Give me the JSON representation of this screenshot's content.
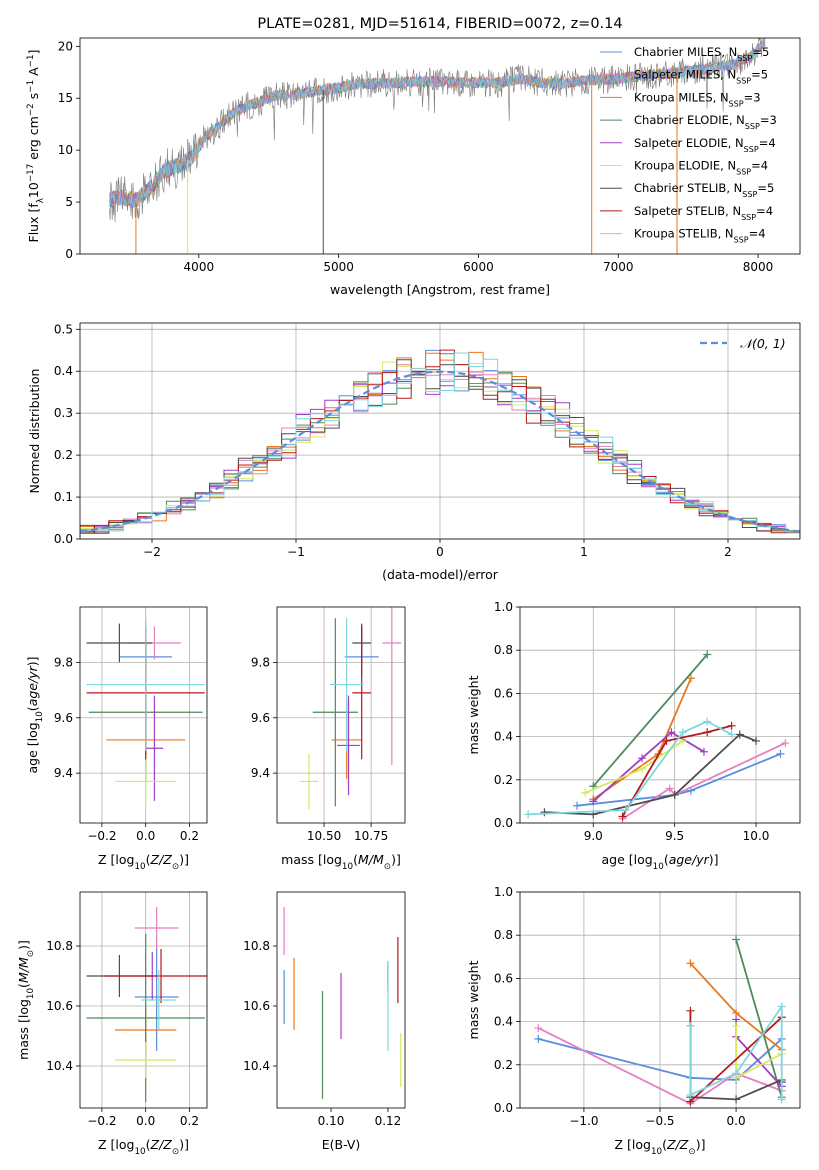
{
  "figure_title": "PLATE=0281, MJD=51614, FIBERID=0072, z=0.14",
  "colors": {
    "series": [
      "#5b8ddc",
      "#e67fbf",
      "#e8781e",
      "#4e8a5c",
      "#a23ec2",
      "#d8e860",
      "#4d4d4d",
      "#b5191e",
      "#7ed6de"
    ],
    "normal_curve": "#5b8ddc",
    "grid": "#b0b0b0",
    "spectrum_base": "#7a7a7a"
  },
  "chart_data": [
    {
      "id": "spectrum",
      "type": "line",
      "title": "PLATE=0281, MJD=51614, FIBERID=0072, z=0.14",
      "xlabel": "wavelength [Angstrom, rest frame]",
      "ylabel": "Flux [f_λ 10⁻¹⁷ erg cm⁻² s⁻¹ A⁻¹]",
      "xlim": [
        3150,
        8300
      ],
      "ylim": [
        0,
        20.8
      ],
      "xticks": [
        4000,
        5000,
        6000,
        7000,
        8000
      ],
      "yticks": [
        0,
        5,
        10,
        15,
        20
      ],
      "grid": false,
      "legend_position": "top-right",
      "continuum": {
        "x": [
          3360,
          3450,
          3550,
          3650,
          3750,
          3850,
          3950,
          4050,
          4150,
          4250,
          4350,
          4450,
          4550,
          4650,
          4800,
          4950,
          5100,
          5250,
          5400,
          5550,
          5700,
          5850,
          6000,
          6150,
          6300,
          6450,
          6600,
          6750,
          6900,
          7050,
          7200,
          7350,
          7500,
          7650,
          7800,
          7950,
          8050
        ],
        "y": [
          5.2,
          5.5,
          5.2,
          6.3,
          8.0,
          8.5,
          9.3,
          11.3,
          12.4,
          13.6,
          14.3,
          14.7,
          15.3,
          15.3,
          15.6,
          15.9,
          16.3,
          16.4,
          16.5,
          16.6,
          16.6,
          16.5,
          16.5,
          16.5,
          16.9,
          16.5,
          16.4,
          16.7,
          16.8,
          17.0,
          17.2,
          17.4,
          17.6,
          17.9,
          18.2,
          19.0,
          20.5
        ]
      },
      "legend": [
        "Chabrier MILES, N_SSP=5",
        "Salpeter MILES, N_SSP=5",
        "Kroupa MILES, N_SSP=3",
        "Chabrier ELODIE, N_SSP=3",
        "Salpeter ELODIE, N_SSP=4",
        "Kroupa ELODIE, N_SSP=4",
        "Chabrier STELIB, N_SSP=5",
        "Salpeter STELIB, N_SSP=4",
        "Kroupa STELIB, N_SSP=4"
      ]
    },
    {
      "id": "residuals",
      "type": "line",
      "xlabel": "(data-model)/error",
      "ylabel": "Normed distribution",
      "xlim": [
        -2.5,
        2.5
      ],
      "ylim": [
        0,
        0.515
      ],
      "xticks": [
        -2,
        -1,
        0,
        1,
        2
      ],
      "yticks": [
        0.0,
        0.1,
        0.2,
        0.3,
        0.4,
        0.5
      ],
      "grid": true,
      "legend_position": "top-right",
      "legend": [
        "𝒩(0, 1)"
      ],
      "bin_width": 0.1
    },
    {
      "id": "age_vs_Z",
      "type": "scatter",
      "xlabel": "Z [log10(Z/Z⊙)]",
      "ylabel": "age [log10(age/yr)]",
      "xlim": [
        -0.3,
        0.28
      ],
      "ylim": [
        9.22,
        10.0
      ],
      "xticks": [
        -0.2,
        0.0,
        0.2
      ],
      "yticks": [
        9.4,
        9.6,
        9.8
      ],
      "grid": true,
      "points": [
        {
          "x": 0.0,
          "y": 9.82,
          "xerr": 0.12,
          "yerr": 0.06
        },
        {
          "x": 0.04,
          "y": 9.87,
          "xerr": 0.12,
          "yerr": 0.06
        },
        {
          "x": 0.0,
          "y": 9.52,
          "xerr": 0.18,
          "yerr": 0.1
        },
        {
          "x": 0.0,
          "y": 9.62,
          "xerr": 0.26,
          "yerr": 0.25
        },
        {
          "x": 0.04,
          "y": 9.49,
          "xerr": 0.04,
          "yerr": 0.19
        },
        {
          "x": 0.0,
          "y": 9.37,
          "xerr": 0.14,
          "yerr": 0.1
        },
        {
          "x": -0.12,
          "y": 9.87,
          "xerr": 0.15,
          "yerr": 0.07
        },
        {
          "x": 0.0,
          "y": 9.69,
          "xerr": 0.27,
          "yerr": 0.24
        },
        {
          "x": 0.0,
          "y": 9.72,
          "xerr": 0.27,
          "yerr": 0.24
        }
      ]
    },
    {
      "id": "age_vs_mass",
      "type": "scatter",
      "xlabel": "mass [log10(M/M⊙)]",
      "xlim": [
        10.25,
        10.93
      ],
      "ylim": [
        9.22,
        10.0
      ],
      "xticks": [
        10.5,
        10.75
      ],
      "xticklabels": [
        "10.50",
        "10.75"
      ],
      "yticks": [
        9.4,
        9.6,
        9.8
      ],
      "grid": true,
      "points": [
        {
          "x": 10.7,
          "y": 9.82,
          "xerr": 0.09,
          "yerr": 0.07
        },
        {
          "x": 10.86,
          "y": 9.87,
          "xerr": 0.05,
          "yerr": 0.44
        },
        {
          "x": 10.62,
          "y": 9.52,
          "xerr": 0.08,
          "yerr": 0.14
        },
        {
          "x": 10.56,
          "y": 9.62,
          "xerr": 0.12,
          "yerr": 0.34
        },
        {
          "x": 10.63,
          "y": 9.5,
          "xerr": 0.06,
          "yerr": 0.18
        },
        {
          "x": 10.42,
          "y": 9.37,
          "xerr": 0.05,
          "yerr": 0.1
        },
        {
          "x": 10.7,
          "y": 9.87,
          "xerr": 0.05,
          "yerr": 0.07
        },
        {
          "x": 10.7,
          "y": 9.69,
          "xerr": 0.05,
          "yerr": 0.24
        },
        {
          "x": 10.62,
          "y": 9.72,
          "xerr": 0.09,
          "yerr": 0.24
        }
      ]
    },
    {
      "id": "weight_vs_age",
      "type": "line",
      "xlabel": "age [log10(age/yr)]",
      "ylabel": "mass weight",
      "xlim": [
        8.55,
        10.27
      ],
      "ylim": [
        0,
        1.0
      ],
      "xticks": [
        9.0,
        9.5,
        10.0
      ],
      "yticks": [
        0.0,
        0.2,
        0.4,
        0.6,
        0.8,
        1.0
      ],
      "grid": true,
      "series": [
        {
          "points": [
            [
              8.9,
              0.08
            ],
            [
              9.5,
              0.13
            ],
            [
              9.6,
              0.15
            ],
            [
              10.15,
              0.32
            ]
          ]
        },
        {
          "points": [
            [
              9.18,
              0.02
            ],
            [
              9.47,
              0.16
            ],
            [
              9.5,
              0.13
            ],
            [
              10.18,
              0.37
            ]
          ]
        },
        {
          "points": [
            [
              9.0,
              0.11
            ],
            [
              9.4,
              0.32
            ],
            [
              9.6,
              0.67
            ]
          ]
        },
        {
          "points": [
            [
              9.0,
              0.17
            ],
            [
              9.7,
              0.78
            ]
          ]
        },
        {
          "points": [
            [
              9.0,
              0.1
            ],
            [
              9.3,
              0.3
            ],
            [
              9.48,
              0.42
            ],
            [
              9.68,
              0.33
            ]
          ]
        },
        {
          "points": [
            [
              8.95,
              0.14
            ],
            [
              9.3,
              0.25
            ],
            [
              9.55,
              0.38
            ]
          ]
        },
        {
          "points": [
            [
              8.7,
              0.05
            ],
            [
              9.0,
              0.04
            ],
            [
              9.5,
              0.13
            ],
            [
              9.9,
              0.41
            ],
            [
              10.0,
              0.38
            ]
          ]
        },
        {
          "points": [
            [
              9.18,
              0.03
            ],
            [
              9.45,
              0.38
            ],
            [
              9.7,
              0.42
            ],
            [
              9.85,
              0.45
            ]
          ]
        },
        {
          "points": [
            [
              8.6,
              0.04
            ],
            [
              9.2,
              0.06
            ],
            [
              9.55,
              0.42
            ],
            [
              9.7,
              0.47
            ],
            [
              9.85,
              0.41
            ]
          ]
        }
      ]
    },
    {
      "id": "mass_vs_Z",
      "type": "scatter",
      "xlabel": "Z [log10(Z/Z⊙)]",
      "ylabel": "mass [log10(M/M⊙)]",
      "xlim": [
        -0.3,
        0.28
      ],
      "ylim": [
        10.26,
        10.98
      ],
      "xticks": [
        -0.2,
        0.0,
        0.2
      ],
      "yticks": [
        10.4,
        10.6,
        10.8
      ],
      "grid": true,
      "points": [
        {
          "x": 0.05,
          "y": 10.63,
          "xerr": 0.1,
          "yerr": 0.18
        },
        {
          "x": 0.05,
          "y": 10.86,
          "xerr": 0.1,
          "yerr": 0.07
        },
        {
          "x": 0.0,
          "y": 10.52,
          "xerr": 0.14,
          "yerr": 0.07
        },
        {
          "x": 0.0,
          "y": 10.56,
          "xerr": 0.27,
          "yerr": 0.28
        },
        {
          "x": 0.03,
          "y": 10.7,
          "xerr": 0.03,
          "yerr": 0.08
        },
        {
          "x": 0.0,
          "y": 10.42,
          "xerr": 0.14,
          "yerr": 0.06
        },
        {
          "x": -0.12,
          "y": 10.7,
          "xerr": 0.15,
          "yerr": 0.07
        },
        {
          "x": 0.07,
          "y": 10.7,
          "xerr": 0.26,
          "yerr": 0.09
        },
        {
          "x": 0.06,
          "y": 10.62,
          "xerr": 0.08,
          "yerr": 0.1
        }
      ]
    },
    {
      "id": "mass_vs_ebv",
      "type": "scatter",
      "xlabel": "E(B-V)",
      "xlim": [
        0.081,
        0.126
      ],
      "ylim": [
        10.26,
        10.98
      ],
      "xticks": [
        0.1,
        0.12
      ],
      "xticklabels": [
        "0.10",
        "0.12"
      ],
      "yticks": [
        10.4,
        10.6,
        10.8
      ],
      "grid": false,
      "points": [
        {
          "x": 0.0835,
          "y": 10.63,
          "xerr": 0,
          "yerr": 0.09
        },
        {
          "x": 0.0835,
          "y": 10.85,
          "xerr": 0,
          "yerr": 0.08
        },
        {
          "x": 0.087,
          "y": 10.64,
          "xerr": 0,
          "yerr": 0.12
        },
        {
          "x": 0.097,
          "y": 10.47,
          "xerr": 0,
          "yerr": 0.18
        },
        {
          "x": 0.1035,
          "y": 10.6,
          "xerr": 0,
          "yerr": 0.11
        },
        {
          "x": 0.1245,
          "y": 10.42,
          "xerr": 0,
          "yerr": 0.09
        },
        {
          "x": 0.12,
          "y": 10.7,
          "xerr": 0,
          "yerr": 0.05
        },
        {
          "x": 0.1235,
          "y": 10.72,
          "xerr": 0,
          "yerr": 0.11
        },
        {
          "x": 0.12,
          "y": 10.6,
          "xerr": 0,
          "yerr": 0.15
        }
      ]
    },
    {
      "id": "weight_vs_Z",
      "type": "line",
      "xlabel": "Z [log10(Z/Z⊙)]",
      "ylabel": "mass weight",
      "xlim": [
        -1.42,
        0.42
      ],
      "ylim": [
        0,
        1.0
      ],
      "xticks": [
        -1.0,
        -0.5,
        0.0
      ],
      "yticks": [
        0.0,
        0.2,
        0.4,
        0.6,
        0.8,
        1.0
      ],
      "grid": true,
      "series": [
        {
          "points": [
            [
              -1.3,
              0.32
            ],
            [
              -0.3,
              0.14
            ],
            [
              0.0,
              0.13
            ],
            [
              0.3,
              0.32
            ]
          ]
        },
        {
          "points": [
            [
              -1.3,
              0.37
            ],
            [
              -0.3,
              0.02
            ],
            [
              0.0,
              0.16
            ],
            [
              0.3,
              0.08
            ]
          ]
        },
        {
          "points": [
            [
              -0.3,
              0.67
            ],
            [
              0.0,
              0.44
            ],
            [
              0.3,
              0.27
            ]
          ]
        },
        {
          "points": [
            [
              0.0,
              0.78
            ],
            [
              0.3,
              0.05
            ]
          ]
        },
        {
          "points": [
            [
              0.0,
              0.41
            ],
            [
              0.0,
              0.33
            ],
            [
              0.3,
              0.1
            ],
            [
              0.3,
              0.12
            ]
          ]
        },
        {
          "points": [
            [
              0.0,
              0.38
            ],
            [
              0.0,
              0.14
            ],
            [
              0.3,
              0.25
            ]
          ]
        },
        {
          "points": [
            [
              -0.3,
              0.38
            ],
            [
              -0.3,
              0.05
            ],
            [
              0.0,
              0.04
            ],
            [
              0.3,
              0.13
            ],
            [
              0.3,
              0.12
            ]
          ]
        },
        {
          "points": [
            [
              -0.3,
              0.45
            ],
            [
              -0.3,
              0.03
            ],
            [
              0.3,
              0.42
            ]
          ]
        },
        {
          "points": [
            [
              -0.3,
              0.38
            ],
            [
              -0.3,
              0.06
            ],
            [
              0.0,
              0.16
            ],
            [
              0.3,
              0.47
            ],
            [
              0.3,
              0.04
            ]
          ]
        }
      ]
    }
  ]
}
